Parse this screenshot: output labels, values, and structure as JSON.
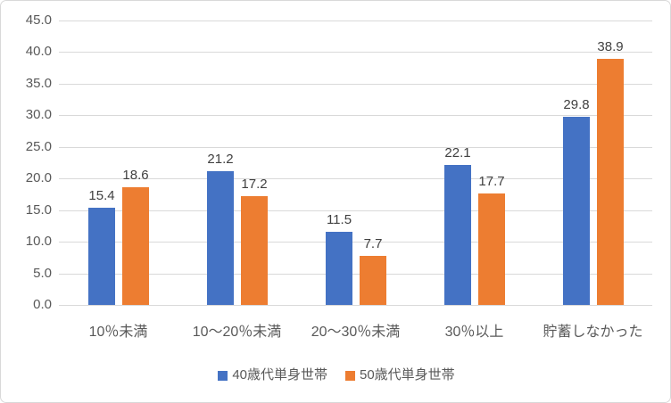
{
  "colors": {
    "series_blue": "#4472C4",
    "series_orange": "#ED7D31",
    "gridline": "#D9D9D9",
    "axis_text": "#595959",
    "data_label_text": "#404040",
    "border": "#D9D9D9",
    "background": "#FFFFFF"
  },
  "chart_data": {
    "type": "bar",
    "title": "",
    "categories": [
      "10％未満",
      "10〜20％未満",
      "20〜30％未満",
      "30％以上",
      "貯蓄しなかった"
    ],
    "series": [
      {
        "name": "40歳代単身世帯",
        "color": "#4472C4",
        "values": [
          15.4,
          21.2,
          11.5,
          22.1,
          29.8
        ]
      },
      {
        "name": "50歳代単身世帯",
        "color": "#ED7D31",
        "values": [
          18.6,
          17.2,
          7.7,
          17.7,
          38.9
        ]
      }
    ],
    "ylim": [
      0,
      45
    ],
    "ytick_step": 5,
    "ytick_labels": [
      "0.0",
      "5.0",
      "10.0",
      "15.0",
      "20.0",
      "25.0",
      "30.0",
      "35.0",
      "40.0",
      "45.0"
    ],
    "grid": true,
    "legend_position": "bottom",
    "data_labels": true,
    "value_format": "one_decimal"
  }
}
